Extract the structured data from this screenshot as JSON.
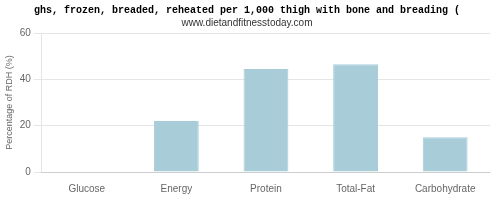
{
  "chart_data": {
    "type": "bar",
    "title": "ghs, frozen, breaded, reheated per 1,000 thigh with bone and breading (",
    "subtitle": "www.dietandfitnesstoday.com",
    "categories": [
      "Glucose",
      "Energy",
      "Protein",
      "Total-Fat",
      "Carbohydrate"
    ],
    "values": [
      0,
      22,
      44.5,
      46.5,
      15
    ],
    "color": "#a8cdd8",
    "ylabel": "Percentage of RDH (%)",
    "ylim": [
      0,
      60
    ],
    "yticks": [
      0,
      20,
      40,
      60
    ],
    "grid": true
  }
}
